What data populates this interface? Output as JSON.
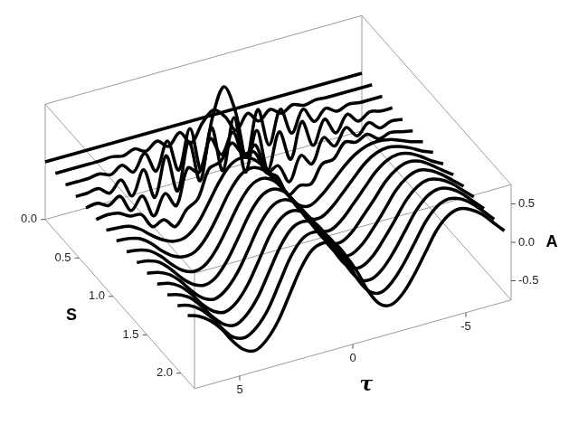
{
  "chart_data": {
    "type": "line",
    "x_label": "τ",
    "y_label": "A",
    "z_label": "S",
    "color": "#000000",
    "x": [
      -7,
      -6.5,
      -6,
      -5.5,
      -5,
      -4.5,
      -4,
      -3.5,
      -3,
      -2.5,
      -2,
      -1.5,
      -1,
      -0.5,
      0,
      0.5,
      1,
      1.5,
      2,
      2.5,
      3,
      3.5,
      4,
      4.5,
      5,
      5.5,
      6,
      6.5,
      7
    ],
    "xlim": [
      -7,
      7
    ],
    "xticks": [
      -5,
      0,
      5
    ],
    "ylim": [
      -0.75,
      0.75
    ],
    "yticks": [
      -0.5,
      {
        "value": 0,
        "label": "0.0"
      },
      0.5
    ],
    "zlim": [
      0,
      2.2
    ],
    "zticks": [
      {
        "value": 0,
        "label": "0.0"
      },
      0.5,
      {
        "value": 1,
        "label": "1.0"
      },
      1.5,
      {
        "value": 2,
        "label": "2.0"
      }
    ],
    "series": [
      {
        "s": 0,
        "values": [
          0,
          0,
          0,
          0,
          0,
          0,
          0,
          0,
          0,
          0,
          0,
          0,
          0,
          0,
          0,
          0,
          0,
          0,
          0,
          0,
          0,
          0,
          0,
          0,
          0,
          0,
          0,
          0,
          0
        ]
      },
      {
        "s": 0.15,
        "values": [
          0,
          0,
          0,
          0,
          0,
          0.01,
          -0.02,
          0.03,
          -0.04,
          0.05,
          -0.06,
          0.08,
          -0.1,
          0.12,
          0.25,
          0.12,
          -0.1,
          0.08,
          -0.06,
          0.05,
          -0.04,
          0.03,
          -0.02,
          0.01,
          0,
          0,
          0,
          0,
          0
        ]
      },
      {
        "s": 0.3,
        "values": [
          0,
          0,
          0,
          0.02,
          -0.03,
          0.05,
          -0.08,
          0.12,
          -0.15,
          0.2,
          -0.22,
          0.28,
          -0.3,
          0.35,
          0.7,
          0.35,
          -0.3,
          0.28,
          -0.22,
          0.2,
          -0.15,
          0.12,
          -0.08,
          0.05,
          -0.03,
          0.02,
          0,
          0,
          0
        ]
      },
      {
        "s": 0.45,
        "values": [
          0,
          0,
          0.03,
          -0.05,
          0.08,
          -0.12,
          0.1,
          -0.2,
          0.15,
          -0.3,
          0.1,
          -0.35,
          0.2,
          -0.3,
          0.45,
          -0.2,
          0.4,
          -0.25,
          0.3,
          -0.3,
          0.2,
          -0.3,
          0.1,
          -0.2,
          0.05,
          -0.08,
          0.02,
          0,
          0
        ]
      },
      {
        "s": 0.6,
        "values": [
          0,
          0.02,
          -0.03,
          0.08,
          -0.05,
          0.1,
          -0.1,
          0.05,
          -0.25,
          -0.1,
          -0.4,
          -0.15,
          -0.2,
          0.2,
          0.1,
          0.45,
          0.2,
          0.45,
          0.05,
          0.15,
          -0.3,
          -0.1,
          -0.35,
          -0.05,
          -0.2,
          0.03,
          -0.05,
          0.02,
          0
        ]
      },
      {
        "s": 0.75,
        "values": [
          0,
          0.03,
          0.06,
          0.02,
          0.12,
          0.06,
          0.1,
          -0.08,
          -0.1,
          -0.32,
          -0.3,
          -0.38,
          -0.1,
          0,
          0.3,
          0.32,
          0.5,
          0.3,
          0.25,
          -0.1,
          -0.2,
          -0.38,
          -0.25,
          -0.3,
          -0.1,
          -0.08,
          0,
          0.02,
          0
        ]
      },
      {
        "s": 0.9,
        "values": [
          0.01,
          0.05,
          0.11,
          0.16,
          0.18,
          0.16,
          0.09,
          -0.03,
          -0.18,
          -0.32,
          -0.41,
          -0.36,
          -0.18,
          0.05,
          0.25,
          0.4,
          0.46,
          0.41,
          0.23,
          -0.02,
          -0.25,
          -0.37,
          -0.38,
          -0.32,
          -0.22,
          -0.1,
          -0.02,
          0,
          0.01
        ]
      },
      {
        "s": 1.05,
        "values": [
          0.02,
          0.08,
          0.16,
          0.22,
          0.25,
          0.22,
          0.13,
          -0.02,
          -0.18,
          -0.33,
          -0.42,
          -0.38,
          -0.2,
          0.04,
          0.24,
          0.41,
          0.48,
          0.43,
          0.25,
          -0.01,
          -0.25,
          -0.4,
          -0.43,
          -0.38,
          -0.27,
          -0.13,
          -0.03,
          0.01,
          0.02
        ]
      },
      {
        "s": 1.2,
        "values": [
          0.02,
          0.1,
          0.2,
          0.28,
          0.31,
          0.27,
          0.16,
          -0.01,
          -0.18,
          -0.34,
          -0.43,
          -0.39,
          -0.21,
          0.03,
          0.24,
          0.42,
          0.49,
          0.44,
          0.26,
          0,
          -0.25,
          -0.42,
          -0.47,
          -0.42,
          -0.3,
          -0.15,
          -0.04,
          0.01,
          0.03
        ]
      },
      {
        "s": 1.35,
        "values": [
          0.03,
          0.13,
          0.24,
          0.33,
          0.36,
          0.31,
          0.19,
          0,
          -0.18,
          -0.35,
          -0.44,
          -0.4,
          -0.22,
          0.03,
          0.25,
          0.43,
          0.5,
          0.45,
          0.27,
          0,
          -0.26,
          -0.44,
          -0.5,
          -0.45,
          -0.33,
          -0.17,
          -0.04,
          0.02,
          0.04
        ]
      },
      {
        "s": 1.5,
        "values": [
          0.03,
          0.15,
          0.27,
          0.36,
          0.4,
          0.35,
          0.22,
          0.01,
          -0.19,
          -0.36,
          -0.45,
          -0.41,
          -0.23,
          0.03,
          0.26,
          0.44,
          0.51,
          0.46,
          0.28,
          0,
          -0.27,
          -0.45,
          -0.53,
          -0.48,
          -0.35,
          -0.18,
          -0.05,
          0.02,
          0.05
        ]
      },
      {
        "s": 1.65,
        "values": [
          0.04,
          0.17,
          0.3,
          0.39,
          0.43,
          0.38,
          0.24,
          0.02,
          -0.19,
          -0.37,
          -0.46,
          -0.42,
          -0.24,
          0.03,
          0.27,
          0.45,
          0.52,
          0.47,
          0.29,
          0,
          -0.28,
          -0.47,
          -0.55,
          -0.5,
          -0.37,
          -0.19,
          -0.05,
          0.03,
          0.06
        ]
      },
      {
        "s": 1.8,
        "values": [
          0.04,
          0.18,
          0.32,
          0.42,
          0.46,
          0.41,
          0.26,
          0.03,
          -0.2,
          -0.38,
          -0.47,
          -0.43,
          -0.24,
          0.04,
          0.28,
          0.47,
          0.53,
          0.48,
          0.29,
          0,
          -0.29,
          -0.48,
          -0.57,
          -0.52,
          -0.38,
          -0.2,
          -0.05,
          0.03,
          0.07
        ]
      },
      {
        "s": 1.95,
        "values": [
          0.05,
          0.2,
          0.34,
          0.44,
          0.48,
          0.43,
          0.28,
          0.04,
          -0.2,
          -0.39,
          -0.49,
          -0.44,
          -0.25,
          0.04,
          0.29,
          0.48,
          0.54,
          0.49,
          0.3,
          0,
          -0.3,
          -0.49,
          -0.58,
          -0.54,
          -0.39,
          -0.2,
          -0.05,
          0.04,
          0.08
        ]
      },
      {
        "s": 2.1,
        "values": [
          0.05,
          0.2,
          0.35,
          0.45,
          0.5,
          0.45,
          0.3,
          0.05,
          -0.2,
          -0.4,
          -0.5,
          -0.45,
          -0.25,
          0.05,
          0.3,
          0.5,
          0.55,
          0.5,
          0.3,
          0,
          -0.3,
          -0.5,
          -0.6,
          -0.55,
          -0.4,
          -0.2,
          -0.05,
          0.05,
          0.1
        ]
      }
    ]
  }
}
